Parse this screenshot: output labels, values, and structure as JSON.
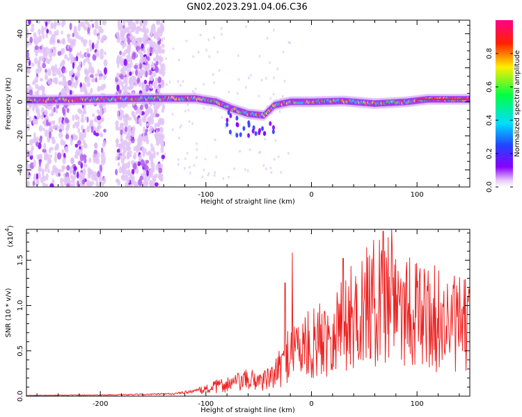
{
  "figure_title": "GN02.2023.291.04.06.C36",
  "chart_data": [
    {
      "type": "heatmap",
      "name": "spectrogram",
      "xlabel": "Height of straight line (km)",
      "ylabel": "Frequency (Hz)",
      "xlim": [
        -270,
        150
      ],
      "ylim": [
        -50,
        48
      ],
      "xticks": [
        -200,
        -100,
        0,
        100
      ],
      "yticks": [
        -40,
        -20,
        0,
        20,
        40
      ],
      "colorbar": {
        "label": "Normalized spectral amplitude",
        "range": [
          0,
          1
        ],
        "ticks": [
          "0.0",
          "0.2",
          "0.4",
          "0.6",
          "0.8"
        ],
        "tick_values": [
          0,
          0.2,
          0.4,
          0.6,
          0.8
        ],
        "colors": [
          "#ffffff",
          "#e8c8f8",
          "#8800ff",
          "#2244ff",
          "#00ddff",
          "#00ff44",
          "#ffee00",
          "#ff2200",
          "#ff0088"
        ]
      },
      "ridge_center_hz": [
        {
          "x": -250,
          "y": 1
        },
        {
          "x": -200,
          "y": 1.5
        },
        {
          "x": -150,
          "y": 2
        },
        {
          "x": -110,
          "y": 2
        },
        {
          "x": -90,
          "y": 0
        },
        {
          "x": -75,
          "y": -4
        },
        {
          "x": -60,
          "y": -7
        },
        {
          "x": -45,
          "y": -8
        },
        {
          "x": -35,
          "y": -2
        },
        {
          "x": -20,
          "y": 0
        },
        {
          "x": 0,
          "y": 0
        },
        {
          "x": 30,
          "y": 0.5
        },
        {
          "x": 60,
          "y": -1
        },
        {
          "x": 90,
          "y": 0
        },
        {
          "x": 110,
          "y": 1.5
        },
        {
          "x": 150,
          "y": 1.5
        }
      ],
      "noise_bands_km": [
        [
          -270,
          -195
        ],
        [
          -185,
          -140
        ]
      ]
    },
    {
      "type": "line",
      "name": "snr",
      "xlabel": "Height of straight line (km)",
      "ylabel": "SNR (10 * v/v)",
      "scale_label": "(x10",
      "scale_exp": "4",
      "scale_close": ")",
      "xlim": [
        -270,
        150
      ],
      "ylim": [
        0,
        18400
      ],
      "xticks": [
        -200,
        -100,
        0,
        100
      ],
      "yticks": [
        0,
        5000,
        10000,
        15000
      ],
      "ytick_labels": [
        "0.0",
        "0.5",
        "1.0",
        "1.5"
      ],
      "color": "#ee2222",
      "envelope": [
        {
          "x": -270,
          "y": 80
        },
        {
          "x": -180,
          "y": 150
        },
        {
          "x": -130,
          "y": 250
        },
        {
          "x": -110,
          "y": 600
        },
        {
          "x": -85,
          "y": 1500
        },
        {
          "x": -60,
          "y": 2200
        },
        {
          "x": -40,
          "y": 2300
        },
        {
          "x": -30,
          "y": 3800
        },
        {
          "x": -20,
          "y": 6500
        },
        {
          "x": 0,
          "y": 7000
        },
        {
          "x": 20,
          "y": 9000
        },
        {
          "x": 40,
          "y": 11000
        },
        {
          "x": 60,
          "y": 13000
        },
        {
          "x": 75,
          "y": 14500
        },
        {
          "x": 90,
          "y": 12500
        },
        {
          "x": 110,
          "y": 11000
        },
        {
          "x": 130,
          "y": 10000
        },
        {
          "x": 150,
          "y": 9500
        }
      ],
      "peaks": [
        {
          "x": -25,
          "y": 12500
        },
        {
          "x": -18,
          "y": 15800
        },
        {
          "x": 30,
          "y": 15200
        },
        {
          "x": 55,
          "y": 15500
        },
        {
          "x": 68,
          "y": 18200
        },
        {
          "x": 76,
          "y": 18400
        },
        {
          "x": 100,
          "y": 12000
        }
      ]
    }
  ]
}
